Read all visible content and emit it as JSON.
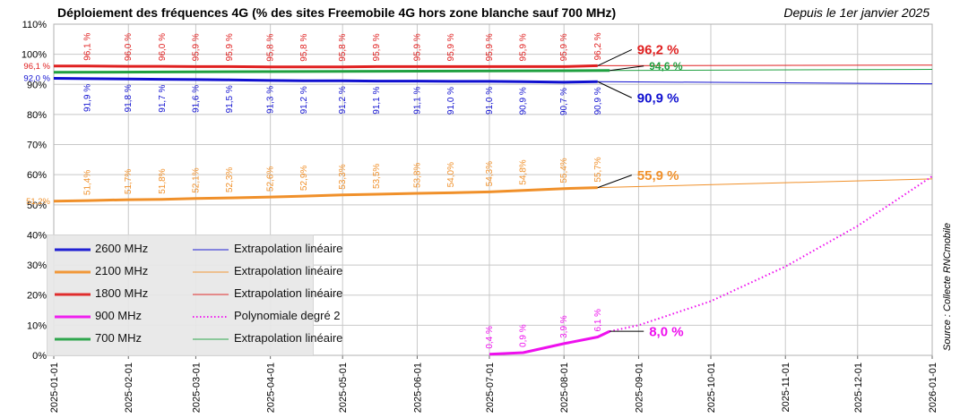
{
  "title": "Déploiement des fréquences 4G (% des sites Freemobile 4G hors zone blanche sauf 700 MHz)",
  "subtitle": "Depuis le 1er janvier 2025",
  "source": "Source : Collecte RNCmobile",
  "colors": {
    "2600": "#1010d0",
    "2100": "#f0902a",
    "1800": "#e02020",
    "900": "#ee10ee",
    "700": "#20a040",
    "grid": "#c8c8c8"
  },
  "legend": [
    {
      "label": "2600 MHz",
      "ext_label": "Extrapolation linéaire",
      "color_key": "2600",
      "ext_style": "solid"
    },
    {
      "label": "2100 MHz",
      "ext_label": "Extrapolation linéaire",
      "color_key": "2100",
      "ext_style": "solid"
    },
    {
      "label": "1800 MHz",
      "ext_label": "Extrapolation linéaire",
      "color_key": "1800",
      "ext_style": "solid"
    },
    {
      "label": "900 MHz",
      "ext_label": "Polynomiale degré 2",
      "color_key": "900",
      "ext_style": "dotted"
    },
    {
      "label": "700 MHz",
      "ext_label": "Extrapolation linéaire",
      "color_key": "700",
      "ext_style": "solid"
    }
  ],
  "chart_data": {
    "type": "line",
    "y_ticks": [
      "0%",
      "10%",
      "20%",
      "30%",
      "40%",
      "50%",
      "60%",
      "70%",
      "80%",
      "90%",
      "100%",
      "110%"
    ],
    "ylim": [
      0,
      110
    ],
    "x_ticks": [
      "2025-01-01",
      "2025-02-01",
      "2025-03-01",
      "2025-04-01",
      "2025-05-01",
      "2025-06-01",
      "2025-07-01",
      "2025-08-01",
      "2025-09-01",
      "2025-10-01",
      "2025-11-01",
      "2025-12-01",
      "2026-01-01"
    ],
    "xlim": [
      "2025-01-01",
      "2026-01-01"
    ],
    "grid": true,
    "legend_position": "bottom-left",
    "series": [
      {
        "name": "2600 MHz",
        "color_key": "2600",
        "start": {
          "date": "2025-01-01",
          "value": 92.0,
          "label": "92,0 %"
        },
        "points": [
          {
            "date": "2025-01-15",
            "value": 91.9,
            "label": "91,9 %"
          },
          {
            "date": "2025-02-01",
            "value": 91.8,
            "label": "91,8 %"
          },
          {
            "date": "2025-02-15",
            "value": 91.7,
            "label": "91,7 %"
          },
          {
            "date": "2025-03-01",
            "value": 91.6,
            "label": "91,6 %"
          },
          {
            "date": "2025-03-15",
            "value": 91.5,
            "label": "91,5 %"
          },
          {
            "date": "2025-04-01",
            "value": 91.3,
            "label": "91,3 %"
          },
          {
            "date": "2025-04-15",
            "value": 91.2,
            "label": "91,2 %"
          },
          {
            "date": "2025-05-01",
            "value": 91.2,
            "label": "91,2 %"
          },
          {
            "date": "2025-05-15",
            "value": 91.1,
            "label": "91,1 %"
          },
          {
            "date": "2025-06-01",
            "value": 91.1,
            "label": "91,1 %"
          },
          {
            "date": "2025-06-15",
            "value": 91.0,
            "label": "91,0 %"
          },
          {
            "date": "2025-07-01",
            "value": 91.0,
            "label": "91,0 %"
          },
          {
            "date": "2025-07-15",
            "value": 90.9,
            "label": "90,9 %"
          },
          {
            "date": "2025-08-01",
            "value": 90.7,
            "label": "90,7 %"
          },
          {
            "date": "2025-08-15",
            "value": 90.9,
            "label": "90,9 %"
          }
        ],
        "last_label": "90,9 %",
        "extrapolation": {
          "name": "Extrapolation linéaire",
          "end_date": "2026-01-01",
          "end_value": 90.2,
          "style": "solid"
        }
      },
      {
        "name": "2100 MHz",
        "color_key": "2100",
        "start": {
          "date": "2025-01-01",
          "value": 51.2,
          "label": "51,2%"
        },
        "points": [
          {
            "date": "2025-01-15",
            "value": 51.4,
            "label": "51,4%"
          },
          {
            "date": "2025-02-01",
            "value": 51.7,
            "label": "51,7%"
          },
          {
            "date": "2025-02-15",
            "value": 51.8,
            "label": "51,8%"
          },
          {
            "date": "2025-03-01",
            "value": 52.1,
            "label": "52,1%"
          },
          {
            "date": "2025-03-15",
            "value": 52.3,
            "label": "52,3%"
          },
          {
            "date": "2025-04-01",
            "value": 52.6,
            "label": "52,6%"
          },
          {
            "date": "2025-04-15",
            "value": 52.9,
            "label": "52,9%"
          },
          {
            "date": "2025-05-01",
            "value": 53.3,
            "label": "53,3%"
          },
          {
            "date": "2025-05-15",
            "value": 53.5,
            "label": "53,5%"
          },
          {
            "date": "2025-06-01",
            "value": 53.8,
            "label": "53,8%"
          },
          {
            "date": "2025-06-15",
            "value": 54.0,
            "label": "54,0%"
          },
          {
            "date": "2025-07-01",
            "value": 54.3,
            "label": "54,3%"
          },
          {
            "date": "2025-07-15",
            "value": 54.8,
            "label": "54,8%"
          },
          {
            "date": "2025-08-01",
            "value": 55.4,
            "label": "55,4%"
          },
          {
            "date": "2025-08-15",
            "value": 55.7,
            "label": "55,7%"
          }
        ],
        "last_label": "55,9 %",
        "extrapolation": {
          "name": "Extrapolation linéaire",
          "end_date": "2026-01-01",
          "end_value": 58.6,
          "style": "solid"
        }
      },
      {
        "name": "1800 MHz",
        "color_key": "1800",
        "start": {
          "date": "2025-01-01",
          "value": 96.1,
          "label": "96,1 %"
        },
        "points": [
          {
            "date": "2025-01-15",
            "value": 96.1,
            "label": "96,1 %"
          },
          {
            "date": "2025-02-01",
            "value": 96.0,
            "label": "96,0 %"
          },
          {
            "date": "2025-02-15",
            "value": 96.0,
            "label": "96,0 %"
          },
          {
            "date": "2025-03-01",
            "value": 95.9,
            "label": "95,9 %"
          },
          {
            "date": "2025-03-15",
            "value": 95.9,
            "label": "95,9 %"
          },
          {
            "date": "2025-04-01",
            "value": 95.8,
            "label": "95,8 %"
          },
          {
            "date": "2025-04-15",
            "value": 95.8,
            "label": "95,8 %"
          },
          {
            "date": "2025-05-01",
            "value": 95.8,
            "label": "95,8 %"
          },
          {
            "date": "2025-05-15",
            "value": 95.9,
            "label": "95,9 %"
          },
          {
            "date": "2025-06-01",
            "value": 95.9,
            "label": "95,9 %"
          },
          {
            "date": "2025-06-15",
            "value": 95.9,
            "label": "95,9 %"
          },
          {
            "date": "2025-07-01",
            "value": 95.9,
            "label": "95,9 %"
          },
          {
            "date": "2025-07-15",
            "value": 95.9,
            "label": "95,9 %"
          },
          {
            "date": "2025-08-01",
            "value": 95.9,
            "label": "95,9 %"
          },
          {
            "date": "2025-08-15",
            "value": 96.2,
            "label": "96,2 %"
          }
        ],
        "last_label": "96,2 %",
        "extrapolation": {
          "name": "Extrapolation linéaire",
          "end_date": "2026-01-01",
          "end_value": 96.4,
          "style": "solid"
        }
      },
      {
        "name": "900 MHz",
        "color_key": "900",
        "points": [
          {
            "date": "2025-07-01",
            "value": 0.4,
            "label": "0,4 %"
          },
          {
            "date": "2025-07-15",
            "value": 0.9,
            "label": "0,9 %"
          },
          {
            "date": "2025-08-01",
            "value": 3.9,
            "label": "3,9 %"
          },
          {
            "date": "2025-08-15",
            "value": 6.1,
            "label": "6,1 %"
          }
        ],
        "last_point": {
          "date": "2025-08-20",
          "value": 8.0
        },
        "last_label": "8,0 %",
        "extrapolation": {
          "name": "Polynomiale degré 2",
          "end_date": "2026-01-01",
          "end_value": 59.5,
          "style": "dotted",
          "points": [
            {
              "date": "2025-08-20",
              "value": 8.0
            },
            {
              "date": "2025-09-01",
              "value": 10.0
            },
            {
              "date": "2025-10-01",
              "value": 18.0
            },
            {
              "date": "2025-11-01",
              "value": 29.5
            },
            {
              "date": "2025-12-01",
              "value": 43.0
            },
            {
              "date": "2026-01-01",
              "value": 59.5
            }
          ]
        }
      },
      {
        "name": "700 MHz",
        "color_key": "700",
        "start": {
          "date": "2025-01-01",
          "value": 94.0
        },
        "points": [
          {
            "date": "2025-08-20",
            "value": 94.6
          }
        ],
        "last_label": "94,6 %",
        "extrapolation": {
          "name": "Extrapolation linéaire",
          "end_date": "2026-01-01",
          "end_value": 95.0,
          "style": "solid"
        }
      }
    ]
  }
}
